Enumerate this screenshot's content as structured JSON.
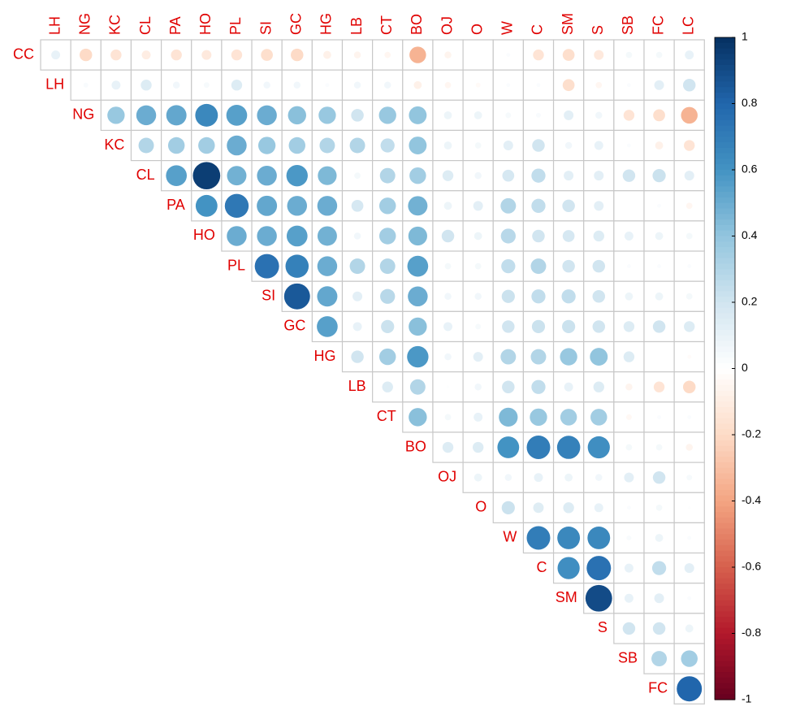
{
  "chart_data": {
    "type": "corrplot",
    "rows": [
      "CC",
      "LH",
      "NG",
      "KC",
      "CL",
      "PA",
      "HO",
      "PL",
      "SI",
      "GC",
      "HG",
      "LB",
      "CT",
      "BO",
      "OJ",
      "O",
      "W",
      "C",
      "SM",
      "S",
      "SB",
      "FC"
    ],
    "columns": [
      "LH",
      "NG",
      "KC",
      "CL",
      "PA",
      "HO",
      "PL",
      "SI",
      "GC",
      "HG",
      "LB",
      "CT",
      "BO",
      "OJ",
      "O",
      "W",
      "C",
      "SM",
      "S",
      "SB",
      "FC",
      "LC"
    ],
    "values": [
      [
        0.1,
        -0.2,
        -0.15,
        -0.1,
        -0.15,
        -0.12,
        -0.15,
        -0.18,
        -0.2,
        -0.08,
        -0.06,
        -0.05,
        -0.35,
        -0.06,
        0,
        0.02,
        -0.15,
        -0.18,
        -0.12,
        0.05,
        0.05,
        0.1
      ],
      [
        0.03,
        0.1,
        0.15,
        0.06,
        0.04,
        0.15,
        0.06,
        0.06,
        0.02,
        0.06,
        0.06,
        -0.08,
        -0.05,
        -0.03,
        0.02,
        0.02,
        -0.18,
        -0.05,
        0.02,
        0.12,
        0.2
      ],
      [
        0.38,
        0.5,
        0.52,
        0.65,
        0.55,
        0.5,
        0.42,
        0.38,
        0.2,
        0.38,
        0.4,
        0.08,
        0.08,
        0.04,
        0.03,
        0.12,
        0.06,
        -0.15,
        -0.18,
        -0.35
      ],
      [
        0.3,
        0.35,
        0.35,
        0.5,
        0.38,
        0.35,
        0.3,
        0.3,
        0.25,
        0.4,
        0.08,
        0.05,
        0.12,
        0.2,
        0.06,
        0.1,
        0.02,
        -0.08,
        -0.15
      ],
      [
        0.55,
        0.95,
        0.48,
        0.5,
        0.58,
        0.45,
        0.05,
        0.3,
        0.35,
        0.15,
        0.06,
        0.18,
        0.25,
        0.12,
        0.12,
        0.2,
        0.22,
        0.12
      ],
      [
        0.6,
        0.72,
        0.52,
        0.5,
        0.5,
        0.18,
        0.35,
        0.48,
        0.08,
        0.12,
        0.3,
        0.25,
        0.2,
        0.12,
        0,
        0.02,
        -0.05
      ],
      [
        0.5,
        0.5,
        0.55,
        0.48,
        0.06,
        0.35,
        0.45,
        0.2,
        0.08,
        0.28,
        0.2,
        0.18,
        0.15,
        0.1,
        0.08,
        0.05
      ],
      [
        0.75,
        0.68,
        0.5,
        0.3,
        0.3,
        0.55,
        0.05,
        0.05,
        0.25,
        0.3,
        0.2,
        0.2,
        0.02,
        0.02,
        0.02
      ],
      [
        0.85,
        0.52,
        0.12,
        0.28,
        0.5,
        0.06,
        0.06,
        0.22,
        0.25,
        0.25,
        0.2,
        0.08,
        0.08,
        0.05
      ],
      [
        0.55,
        0.1,
        0.22,
        0.42,
        0.1,
        0.04,
        0.2,
        0.22,
        0.22,
        0.2,
        0.15,
        0.2,
        0.15
      ],
      [
        0.2,
        0.35,
        0.58,
        0.06,
        0.12,
        0.3,
        0.3,
        0.38,
        0.4,
        0.15,
        0,
        -0.02
      ],
      [
        0.15,
        0.3,
        0.01,
        0.06,
        0.2,
        0.25,
        0.1,
        0.15,
        -0.06,
        -0.15,
        -0.2
      ],
      [
        0.42,
        0.05,
        0.1,
        0.45,
        0.38,
        0.35,
        0.35,
        -0.04,
        0.02,
        0.02
      ],
      [
        0.15,
        0.15,
        0.6,
        0.7,
        0.68,
        0.62,
        0.05,
        0.05,
        -0.06
      ],
      [
        0.08,
        0.06,
        0.1,
        0.08,
        0.06,
        0.12,
        0.2,
        0.04
      ],
      [
        0.22,
        0.14,
        0.15,
        0.1,
        0.02,
        0.05,
        0.01
      ],
      [
        0.7,
        0.65,
        0.65,
        0.03,
        0.08,
        0.02
      ],
      [
        0.62,
        0.75,
        0.1,
        0.25,
        0.12
      ],
      [
        0.9,
        0.1,
        0.12,
        0.02
      ],
      [
        0.2,
        0.2,
        0.08
      ],
      [
        0.3,
        0.35
      ],
      [
        0.8
      ]
    ],
    "clim": [
      -1,
      1
    ],
    "cticks": [
      1,
      0.8,
      0.6,
      0.4,
      0.2,
      0,
      -0.2,
      -0.4,
      -0.6,
      -0.8,
      -1
    ],
    "colors": [
      "#67001F",
      "#B2182B",
      "#D6604D",
      "#F4A582",
      "#FDDBC7",
      "#FFFFFF",
      "#D1E5F0",
      "#92C5DE",
      "#4393C3",
      "#2166AC",
      "#053061"
    ]
  }
}
